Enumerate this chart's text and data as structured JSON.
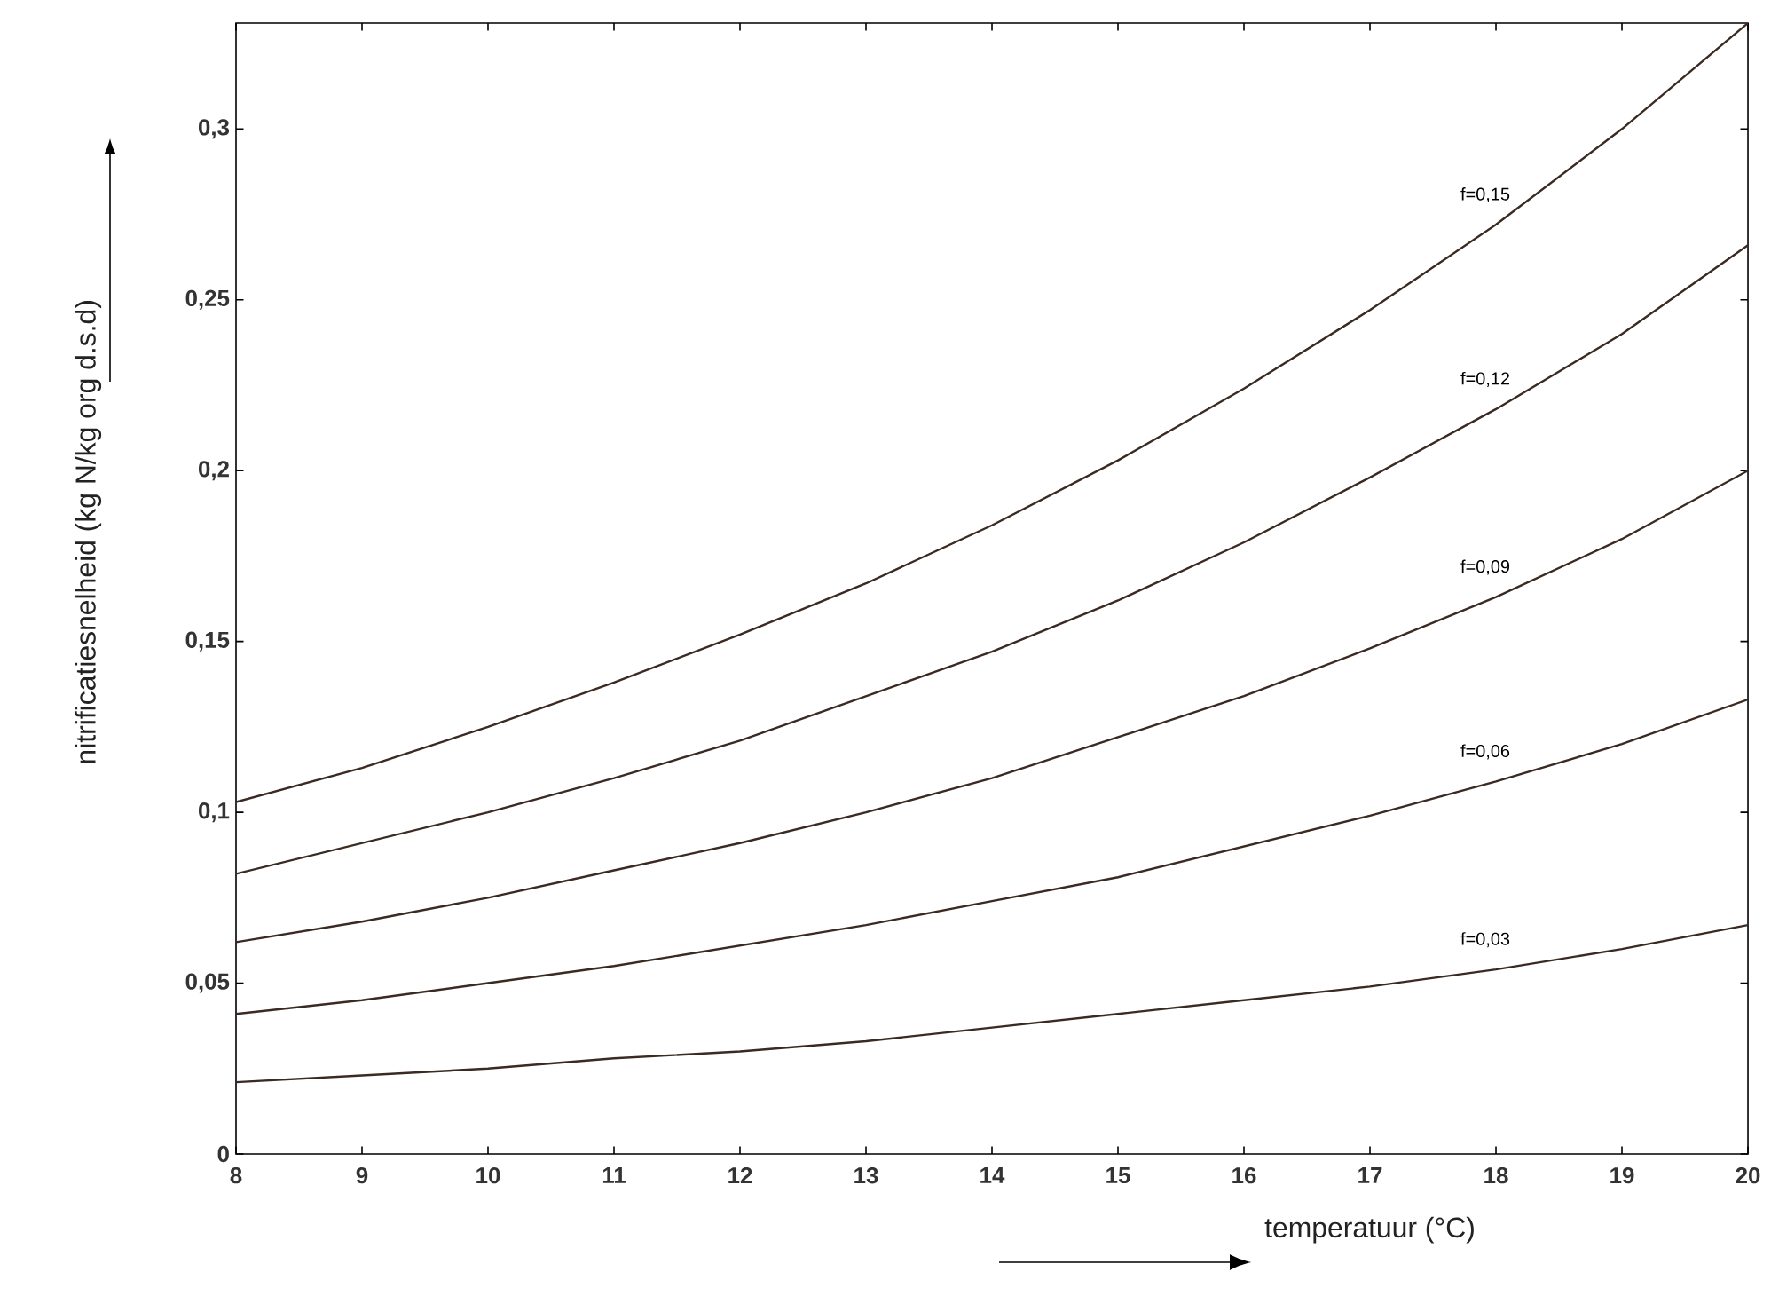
{
  "chart_data": {
    "type": "line",
    "xlabel": "temperatuur (°C)",
    "ylabel": "nitrificatiesnelheid (kg N/kg org d.s.d)",
    "x": [
      8,
      9,
      10,
      11,
      12,
      13,
      14,
      15,
      16,
      17,
      18,
      19,
      20
    ],
    "series": [
      {
        "name": "f=0,15",
        "color": "#3a2a22",
        "values": [
          0.103,
          0.113,
          0.125,
          0.138,
          0.152,
          0.167,
          0.184,
          0.203,
          0.224,
          0.247,
          0.272,
          0.3,
          0.331
        ]
      },
      {
        "name": "f=0,12",
        "color": "#3a2a22",
        "values": [
          0.082,
          0.091,
          0.1,
          0.11,
          0.121,
          0.134,
          0.147,
          0.162,
          0.179,
          0.198,
          0.218,
          0.24,
          0.266
        ]
      },
      {
        "name": "f=0,09",
        "color": "#3a2a22",
        "values": [
          0.062,
          0.068,
          0.075,
          0.083,
          0.091,
          0.1,
          0.11,
          0.122,
          0.134,
          0.148,
          0.163,
          0.18,
          0.2
        ]
      },
      {
        "name": "f=0,06",
        "color": "#3a2a22",
        "values": [
          0.041,
          0.045,
          0.05,
          0.055,
          0.061,
          0.067,
          0.074,
          0.081,
          0.09,
          0.099,
          0.109,
          0.12,
          0.133
        ]
      },
      {
        "name": "f=0,03",
        "color": "#3a2a22",
        "values": [
          0.021,
          0.023,
          0.025,
          0.028,
          0.03,
          0.033,
          0.037,
          0.041,
          0.045,
          0.049,
          0.054,
          0.06,
          0.067
        ]
      }
    ],
    "xlim": [
      8,
      20
    ],
    "ylim": [
      0,
      0.331
    ],
    "xticks": [
      8,
      9,
      10,
      11,
      12,
      13,
      14,
      15,
      16,
      17,
      18,
      19,
      20
    ],
    "yticks": [
      0,
      {
        "value": 0.05,
        "label": "0,05"
      },
      {
        "value": 0.1,
        "label": "0,1"
      },
      {
        "value": 0.15,
        "label": "0,15"
      },
      {
        "value": 0.2,
        "label": "0,2"
      },
      {
        "value": 0.25,
        "label": "0,25"
      },
      {
        "value": 0.3,
        "label": "0,3"
      }
    ],
    "grid": false,
    "legend": false,
    "marker": "none",
    "line_style": "solid"
  }
}
